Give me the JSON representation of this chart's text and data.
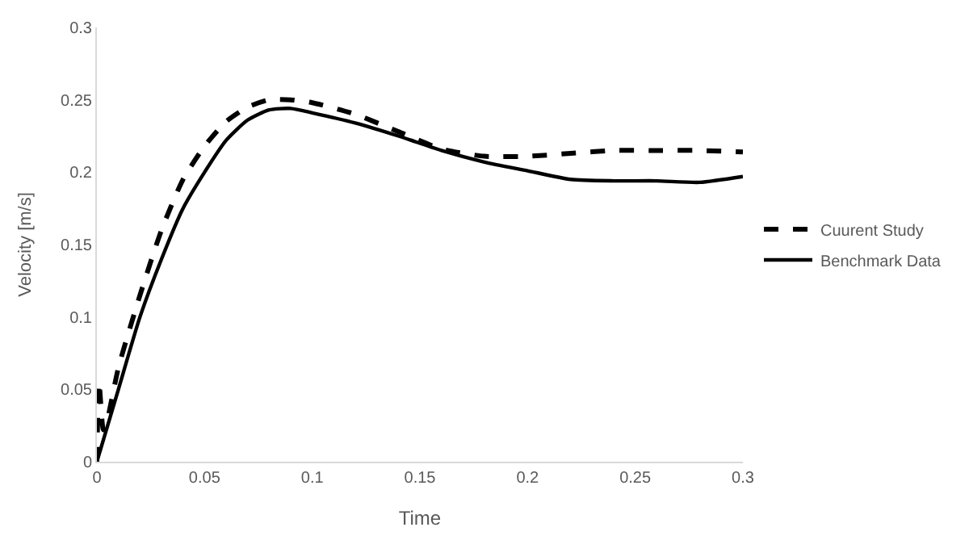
{
  "chart_data": {
    "type": "line",
    "xlabel": "Time",
    "ylabel": "Velocity [m/s]",
    "xlim": [
      0,
      0.3
    ],
    "xticks": [
      0,
      0.05,
      0.1,
      0.15,
      0.2,
      0.25,
      0.3
    ],
    "ylim": [
      0,
      0.3
    ],
    "yticks": [
      0,
      0.05,
      0.1,
      0.15,
      0.2,
      0.25,
      0.3
    ],
    "grid": false,
    "legend": "right",
    "marker": "none",
    "series": [
      {
        "name": "Cuurent Study",
        "color": "#000000",
        "line_style": "dashed",
        "x": [
          0,
          0.001,
          0.003,
          0.005,
          0.01,
          0.02,
          0.03,
          0.04,
          0.05,
          0.06,
          0.07,
          0.08,
          0.09,
          0.1,
          0.12,
          0.14,
          0.16,
          0.18,
          0.2,
          0.22,
          0.24,
          0.26,
          0.28,
          0.3
        ],
        "values": [
          0,
          0.055,
          0.022,
          0.03,
          0.065,
          0.115,
          0.16,
          0.195,
          0.218,
          0.235,
          0.245,
          0.25,
          0.25,
          0.248,
          0.24,
          0.228,
          0.216,
          0.211,
          0.211,
          0.213,
          0.215,
          0.215,
          0.215,
          0.214
        ]
      },
      {
        "name": "Benchmark Data",
        "color": "#000000",
        "line_style": "solid",
        "x": [
          0,
          0.01,
          0.02,
          0.03,
          0.04,
          0.05,
          0.06,
          0.07,
          0.08,
          0.09,
          0.1,
          0.12,
          0.14,
          0.16,
          0.18,
          0.2,
          0.22,
          0.24,
          0.26,
          0.28,
          0.3
        ],
        "values": [
          0,
          0.05,
          0.1,
          0.14,
          0.175,
          0.2,
          0.222,
          0.236,
          0.243,
          0.244,
          0.241,
          0.234,
          0.225,
          0.215,
          0.207,
          0.201,
          0.195,
          0.194,
          0.194,
          0.193,
          0.197
        ]
      }
    ]
  }
}
